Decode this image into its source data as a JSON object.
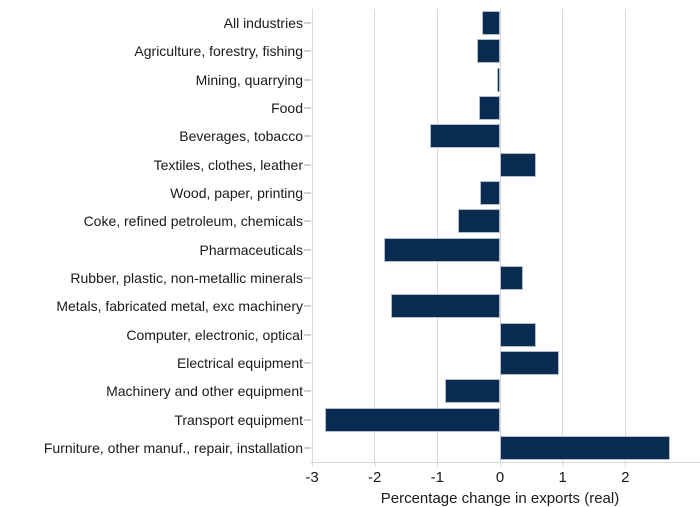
{
  "chart_data": {
    "type": "bar",
    "orientation": "horizontal",
    "title": "",
    "xlabel": "Percentage change in exports (real)",
    "ylabel": "",
    "categories": [
      "All industries",
      "Agriculture, forestry, fishing",
      "Mining, quarrying",
      "Food",
      "Beverages, tobacco",
      "Textiles, clothes, leather",
      "Wood, paper, printing",
      "Coke, refined petroleum, chemicals",
      "Pharmaceuticals",
      "Rubber, plastic, non-metallic minerals",
      "Metals, fabricated metal, exc machinery",
      "Computer, electronic, optical",
      "Electrical equipment",
      "Machinery and other equipment",
      "Transport equipment",
      "Furniture, other manuf., repair, installation"
    ],
    "values": [
      -0.28,
      -0.36,
      -0.05,
      -0.34,
      -1.12,
      0.57,
      -0.32,
      -0.67,
      -1.85,
      0.36,
      -1.74,
      0.57,
      0.94,
      -0.87,
      -2.8,
      2.72
    ],
    "xlim": [
      -3,
      3
    ],
    "xticks": [
      -3,
      -2,
      -1,
      0,
      1,
      2
    ],
    "grid": "vertical",
    "legend": "none",
    "colors": {
      "bar_fill": "#092d50",
      "bar_border": "#b0bfd0",
      "gridline": "#d9d9d9",
      "axis_line": "#d9d9d9",
      "tick_mark": "#d0d0d0",
      "text": "#1a1a1a",
      "background": "#ffffff"
    }
  }
}
